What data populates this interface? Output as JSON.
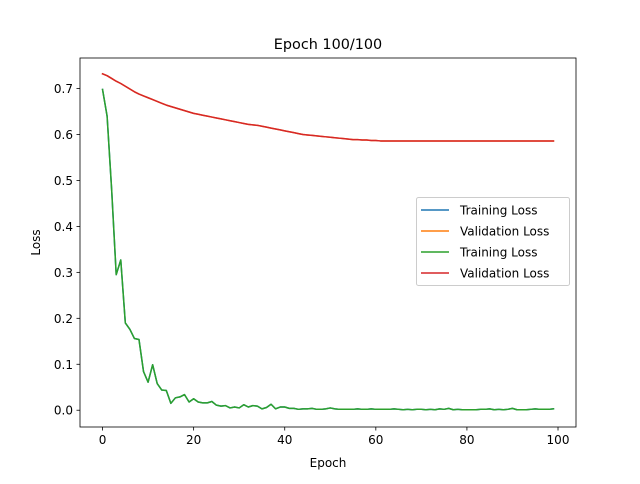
{
  "chart_data": {
    "type": "line",
    "title": "Epoch 100/100",
    "xlabel": "Epoch",
    "ylabel": "Loss",
    "xlim": [
      -4.95,
      103.95
    ],
    "ylim": [
      -0.0365,
      0.7665
    ],
    "x_ticks": [
      0,
      20,
      40,
      60,
      80,
      100
    ],
    "y_ticks": [
      0.0,
      0.1,
      0.2,
      0.3,
      0.4,
      0.5,
      0.6,
      0.7
    ],
    "x_tick_labels": [
      "0",
      "20",
      "40",
      "60",
      "80",
      "100"
    ],
    "y_tick_labels": [
      "0.0",
      "0.1",
      "0.2",
      "0.3",
      "0.4",
      "0.5",
      "0.6",
      "0.7"
    ],
    "grid": false,
    "legend_position": "right",
    "series": [
      {
        "name": "Training Loss",
        "color": "#1f77b4",
        "y": [
          0.698,
          0.64,
          0.48,
          0.295,
          0.327,
          0.19,
          0.176,
          0.156,
          0.154,
          0.084,
          0.061,
          0.099,
          0.058,
          0.044,
          0.043,
          0.015,
          0.027,
          0.029,
          0.034,
          0.018,
          0.025,
          0.018,
          0.016,
          0.016,
          0.019,
          0.011,
          0.009,
          0.01,
          0.005,
          0.007,
          0.005,
          0.012,
          0.007,
          0.01,
          0.009,
          0.003,
          0.006,
          0.013,
          0.003,
          0.007,
          0.007,
          0.004,
          0.004,
          0.002,
          0.003,
          0.003,
          0.004,
          0.002,
          0.002,
          0.003,
          0.005,
          0.003,
          0.002,
          0.002,
          0.002,
          0.002,
          0.003,
          0.002,
          0.002,
          0.003,
          0.002,
          0.002,
          0.002,
          0.002,
          0.003,
          0.002,
          0.001,
          0.002,
          0.001,
          0.002,
          0.002,
          0.001,
          0.002,
          0.001,
          0.003,
          0.002,
          0.004,
          0.001,
          0.002,
          0.001,
          0.001,
          0.001,
          0.001,
          0.002,
          0.002,
          0.003,
          0.001,
          0.002,
          0.001,
          0.002,
          0.004,
          0.001,
          0.001,
          0.001,
          0.002,
          0.003,
          0.002,
          0.002,
          0.002,
          0.003
        ]
      },
      {
        "name": "Validation Loss",
        "color": "#ff7f0e",
        "y": [
          0.732,
          0.728,
          0.722,
          0.716,
          0.711,
          0.705,
          0.699,
          0.693,
          0.688,
          0.684,
          0.68,
          0.676,
          0.672,
          0.668,
          0.664,
          0.661,
          0.658,
          0.655,
          0.652,
          0.649,
          0.646,
          0.644,
          0.642,
          0.64,
          0.638,
          0.636,
          0.634,
          0.632,
          0.63,
          0.628,
          0.626,
          0.624,
          0.622,
          0.621,
          0.62,
          0.618,
          0.616,
          0.614,
          0.612,
          0.61,
          0.608,
          0.606,
          0.604,
          0.602,
          0.6,
          0.599,
          0.598,
          0.597,
          0.596,
          0.595,
          0.594,
          0.593,
          0.592,
          0.591,
          0.59,
          0.589,
          0.589,
          0.588,
          0.588,
          0.587,
          0.587,
          0.586,
          0.586,
          0.586,
          0.586,
          0.586,
          0.586,
          0.586,
          0.586,
          0.586,
          0.586,
          0.586,
          0.586,
          0.586,
          0.586,
          0.586,
          0.586,
          0.586,
          0.586,
          0.586,
          0.586,
          0.586,
          0.586,
          0.586,
          0.586,
          0.586,
          0.586,
          0.586,
          0.586,
          0.586,
          0.586,
          0.586,
          0.586,
          0.586,
          0.586,
          0.586,
          0.586,
          0.586,
          0.586,
          0.586
        ]
      },
      {
        "name": "Training Loss",
        "color": "#2ca02c",
        "y": [
          0.698,
          0.64,
          0.48,
          0.295,
          0.327,
          0.19,
          0.176,
          0.156,
          0.154,
          0.084,
          0.061,
          0.099,
          0.058,
          0.044,
          0.043,
          0.015,
          0.027,
          0.029,
          0.034,
          0.018,
          0.025,
          0.018,
          0.016,
          0.016,
          0.019,
          0.011,
          0.009,
          0.01,
          0.005,
          0.007,
          0.005,
          0.012,
          0.007,
          0.01,
          0.009,
          0.003,
          0.006,
          0.013,
          0.003,
          0.007,
          0.007,
          0.004,
          0.004,
          0.002,
          0.003,
          0.003,
          0.004,
          0.002,
          0.002,
          0.003,
          0.005,
          0.003,
          0.002,
          0.002,
          0.002,
          0.002,
          0.003,
          0.002,
          0.002,
          0.003,
          0.002,
          0.002,
          0.002,
          0.002,
          0.003,
          0.002,
          0.001,
          0.002,
          0.001,
          0.002,
          0.002,
          0.001,
          0.002,
          0.001,
          0.003,
          0.002,
          0.004,
          0.001,
          0.002,
          0.001,
          0.001,
          0.001,
          0.001,
          0.002,
          0.002,
          0.003,
          0.001,
          0.002,
          0.001,
          0.002,
          0.004,
          0.001,
          0.001,
          0.001,
          0.002,
          0.003,
          0.002,
          0.002,
          0.002,
          0.003
        ]
      },
      {
        "name": "Validation Loss",
        "color": "#d62728",
        "y": [
          0.732,
          0.728,
          0.722,
          0.716,
          0.711,
          0.705,
          0.699,
          0.693,
          0.688,
          0.684,
          0.68,
          0.676,
          0.672,
          0.668,
          0.664,
          0.661,
          0.658,
          0.655,
          0.652,
          0.649,
          0.646,
          0.644,
          0.642,
          0.64,
          0.638,
          0.636,
          0.634,
          0.632,
          0.63,
          0.628,
          0.626,
          0.624,
          0.622,
          0.621,
          0.62,
          0.618,
          0.616,
          0.614,
          0.612,
          0.61,
          0.608,
          0.606,
          0.604,
          0.602,
          0.6,
          0.599,
          0.598,
          0.597,
          0.596,
          0.595,
          0.594,
          0.593,
          0.592,
          0.591,
          0.59,
          0.589,
          0.589,
          0.588,
          0.588,
          0.587,
          0.587,
          0.586,
          0.586,
          0.586,
          0.586,
          0.586,
          0.586,
          0.586,
          0.586,
          0.586,
          0.586,
          0.586,
          0.586,
          0.586,
          0.586,
          0.586,
          0.586,
          0.586,
          0.586,
          0.586,
          0.586,
          0.586,
          0.586,
          0.586,
          0.586,
          0.586,
          0.586,
          0.586,
          0.586,
          0.586,
          0.586,
          0.586,
          0.586,
          0.586,
          0.586,
          0.586,
          0.586,
          0.586,
          0.586,
          0.586
        ]
      }
    ]
  }
}
